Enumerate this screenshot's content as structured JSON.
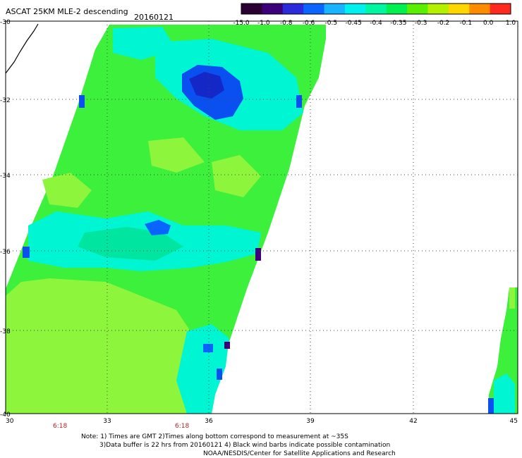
{
  "title": "ASCAT 25KM MLE-2 descending",
  "date": "20160121",
  "colorbar": {
    "labels": [
      "-15.0",
      "-1.0",
      "-0.8",
      "-0.6",
      "-0.5",
      "-0.45",
      "-0.4",
      "-0.35",
      "-0.3",
      "-0.2",
      "-0.1",
      "0.0",
      "1.0"
    ],
    "colors": [
      "#2a0033",
      "#3d007a",
      "#2b2bdc",
      "#0a64ff",
      "#19b4ff",
      "#00f0f0",
      "#00f5a0",
      "#00f050",
      "#58f000",
      "#b4f000",
      "#ffd700",
      "#ff8c00",
      "#ff2a1e"
    ]
  },
  "lat_labels": [
    "-30",
    "-32",
    "-34",
    "-36",
    "-38",
    "-40"
  ],
  "lon_labels": [
    "30",
    "33",
    "36",
    "39",
    "42",
    "45"
  ],
  "times": [
    "6:18",
    "6:18"
  ],
  "notes": [
    "Note: 1) Times are GMT 2)Times along bottom correspond to measurement at ~35S",
    "3)Data buffer is 22 hrs from 20160121 4) Black wind barbs indicate possible contamination",
    "NOAA/NESDIS/Center for Satellite Applications and Research"
  ],
  "field_colors": {
    "green": "#3cf03c",
    "lime": "#8cf53c",
    "cyan": "#00f5d2",
    "teal": "#00e6a0",
    "blue": "#0a50f0",
    "darkblue": "#1428c8"
  }
}
